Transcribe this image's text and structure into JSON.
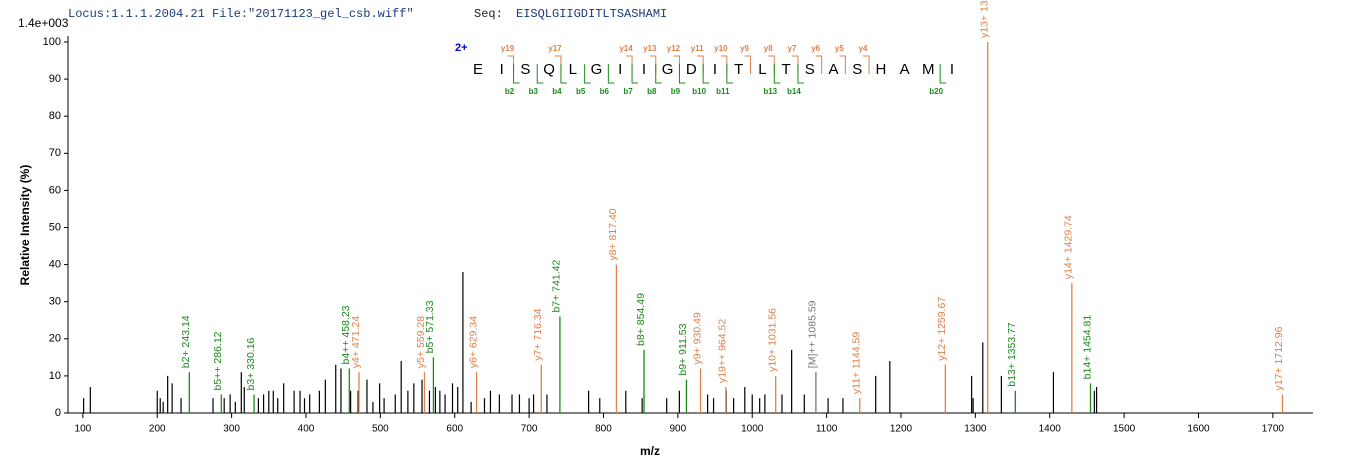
{
  "chart_data": {
    "type": "spectrum",
    "title": "Locus:1.1.1.2004.21 File:\"20171123_gel_csb.wiff\"",
    "seq_label": "Seq:",
    "seq": "EISQLGIIGDITLTSASHAMI",
    "scale_label": "1.4e+003",
    "y_label": "Relative   Intensity (%)",
    "x_label": "m/z",
    "xlim": [
      80,
      1754
    ],
    "ylim": [
      0,
      100
    ],
    "xticks": [
      100,
      200,
      300,
      400,
      500,
      600,
      700,
      800,
      900,
      1000,
      1100,
      1200,
      1300,
      1400,
      1500,
      1600,
      1700
    ],
    "yticks": [
      0,
      10,
      20,
      30,
      40,
      50,
      60,
      70,
      80,
      90,
      100
    ],
    "peaks": {
      "color": "#000000",
      "x": [
        101,
        110,
        200,
        204,
        208,
        214,
        220,
        232,
        275,
        290,
        298,
        305,
        313,
        317,
        336,
        343,
        350,
        356,
        362,
        370,
        384,
        392,
        398,
        405,
        418,
        426,
        440,
        447,
        460,
        470,
        482,
        490,
        499,
        505,
        520,
        528,
        537,
        545,
        556,
        566,
        574,
        580,
        587,
        597,
        604,
        611,
        622,
        640,
        648,
        660,
        677,
        687,
        700,
        706,
        724,
        780,
        795,
        830,
        852,
        885,
        902,
        940,
        948,
        965,
        975,
        990,
        1000,
        1010,
        1017,
        1040,
        1053,
        1070,
        1102,
        1122,
        1166,
        1185,
        1295,
        1297,
        1310,
        1335,
        1405,
        1460,
        1463
      ],
      "values": [
        4,
        7,
        6,
        4,
        3,
        10,
        8,
        4,
        4,
        4,
        5,
        3,
        11,
        7,
        4,
        5,
        6,
        6,
        4,
        8,
        6,
        6,
        4,
        5,
        6,
        9,
        13,
        12,
        6,
        6,
        9,
        3,
        8,
        4,
        5,
        14,
        6,
        8,
        9,
        6,
        7,
        6,
        5,
        8,
        7,
        38,
        3,
        4,
        6,
        5,
        5,
        5,
        4,
        5,
        5,
        6,
        4,
        6,
        4,
        4,
        6,
        5,
        4,
        6,
        4,
        7,
        5,
        4,
        5,
        5,
        17,
        5,
        4,
        4,
        10,
        14,
        10,
        4,
        19,
        10,
        11,
        6,
        7
      ]
    },
    "ion_groups": [
      {
        "color": "#1a8a1a",
        "x": [
          243.14,
          286.12,
          330.16,
          458.23,
          571.33,
          741.42,
          854.49,
          911.53,
          1353.77,
          1454.81
        ],
        "values": [
          11,
          5,
          5,
          12,
          15,
          26,
          17,
          9,
          6,
          8
        ],
        "labels": [
          "b2+ 243.14",
          "b5++ 286.12",
          "b3+ 330.16",
          "b4++ 458.23",
          "b5+ 571.33",
          "b7+ 741.42",
          "b8+ 854.49",
          "b9+ 911.53",
          "b13+ 1353.77",
          "b14+ 1454.81"
        ]
      },
      {
        "color": "#e0804a",
        "x": [
          471.24,
          559.28,
          629.34,
          716.34,
          817.4,
          930.49,
          964.52,
          1031.56,
          1144.59,
          1259.67,
          1316.66,
          1429.74,
          1712.96
        ],
        "values": [
          11,
          11,
          11,
          13,
          40,
          12,
          7,
          10,
          4,
          13,
          100,
          35,
          5
        ],
        "labels": [
          "y4+ 471.24",
          "y5+ 559.28",
          "y6+ 629.34",
          "y7+ 716.34",
          "y8+ 817.40",
          "y9+ 930.49",
          "y19++ 964.52",
          "y10+ 1031.56",
          "y11+ 1144.59",
          "y12+ 1259.67",
          "y13+ 1316.66",
          "y14+ 1429.74",
          "y17+ 1712.96"
        ]
      },
      {
        "color": "#777777",
        "x": [
          1085.59
        ],
        "values": [
          11
        ],
        "labels": [
          "[M]++ 1085.59"
        ]
      }
    ],
    "fragment_map": {
      "charge": "2+",
      "letters": [
        "E",
        "I",
        "S",
        "Q",
        "L",
        "G",
        "I",
        "I",
        "G",
        "D",
        "I",
        "T",
        "L",
        "T",
        "S",
        "A",
        "S",
        "H",
        "A",
        "M",
        "I"
      ],
      "y_labels": [
        null,
        "y19",
        null,
        "y17",
        null,
        null,
        "y14",
        "y13",
        "y12",
        "y11",
        "y10",
        "y9",
        "y8",
        "y7",
        "y6",
        "y5",
        "y4",
        null,
        null,
        null
      ],
      "b_labels": [
        null,
        "b2",
        "b3",
        "b4",
        "b5",
        "b6",
        "b7",
        "b8",
        "b9",
        "b10",
        "b11",
        null,
        "b13",
        "b14",
        null,
        null,
        null,
        null,
        null,
        "b20"
      ]
    }
  }
}
